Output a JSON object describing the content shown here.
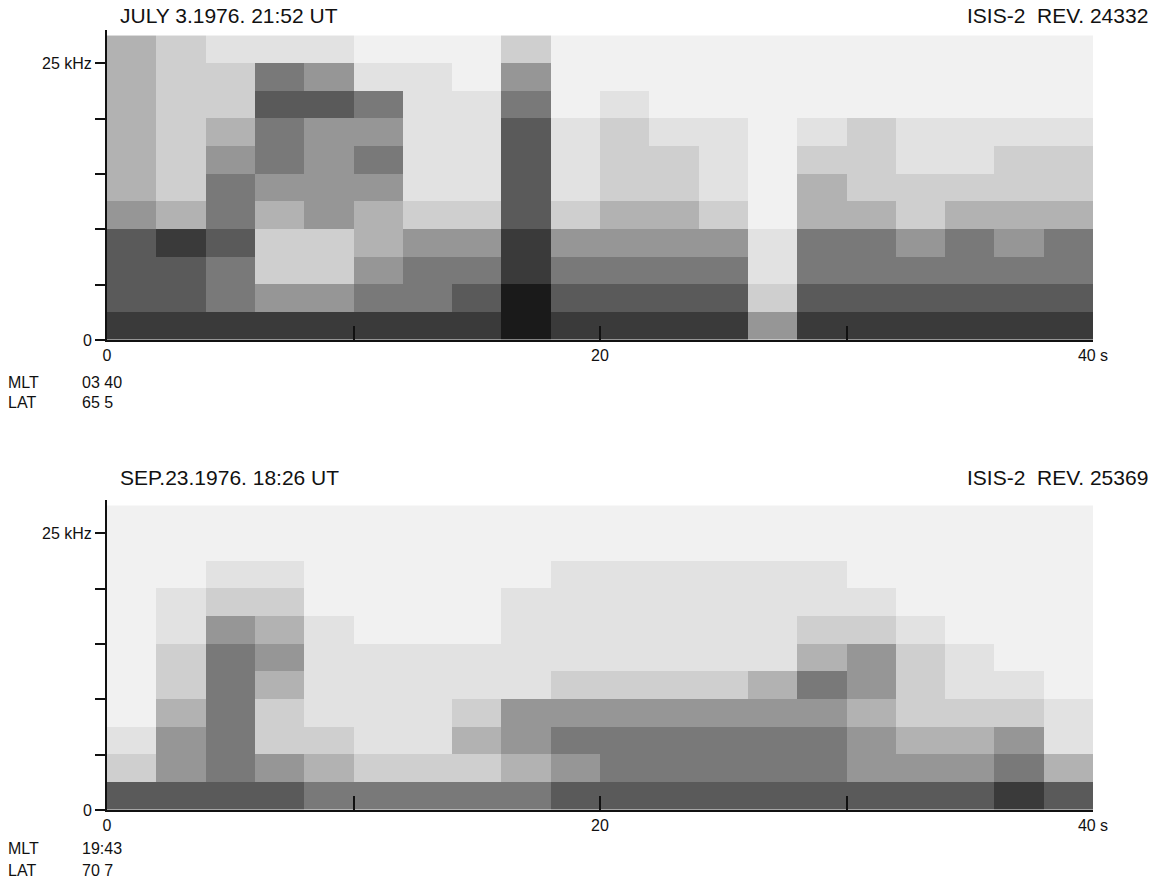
{
  "chart_data": [
    {
      "type": "heatmap",
      "title": "JULY 3.1976. 21:52 UT",
      "subtitle": "ISIS-2  REV. 24332",
      "annotations": [
        {
          "label": "MLT",
          "text": "03 40"
        },
        {
          "label": "LAT",
          "text": "65 5"
        }
      ],
      "x": [
        1,
        3,
        5,
        7,
        9,
        11,
        13,
        15,
        17,
        19,
        21,
        23,
        25,
        27,
        29,
        31,
        33,
        35,
        37,
        39
      ],
      "y": [
        1.25,
        3.75,
        6.25,
        8.75,
        11.25,
        13.75,
        16.25,
        18.75,
        21.25,
        23.75,
        26.25
      ],
      "z": [
        [
          8,
          8,
          8,
          8,
          8,
          8,
          8,
          8,
          9,
          8,
          8,
          8,
          8,
          5,
          8,
          8,
          8,
          8,
          8,
          8
        ],
        [
          7,
          7,
          6,
          5,
          5,
          6,
          6,
          7,
          9,
          7,
          7,
          7,
          7,
          3,
          7,
          7,
          7,
          7,
          7,
          7
        ],
        [
          7,
          7,
          6,
          3,
          3,
          5,
          6,
          6,
          8,
          6,
          6,
          6,
          6,
          2,
          6,
          6,
          6,
          6,
          6,
          6
        ],
        [
          7,
          8,
          7,
          3,
          3,
          4,
          5,
          5,
          8,
          5,
          5,
          5,
          5,
          2,
          6,
          6,
          5,
          6,
          5,
          6
        ],
        [
          5,
          4,
          6,
          4,
          5,
          4,
          3,
          3,
          7,
          3,
          4,
          4,
          3,
          1,
          4,
          4,
          3,
          4,
          4,
          4
        ],
        [
          4,
          3,
          6,
          5,
          5,
          5,
          2,
          2,
          7,
          2,
          3,
          3,
          2,
          1,
          4,
          3,
          3,
          3,
          3,
          3
        ],
        [
          4,
          3,
          5,
          6,
          5,
          6,
          2,
          2,
          7,
          2,
          3,
          3,
          2,
          1,
          3,
          3,
          2,
          2,
          3,
          3
        ],
        [
          4,
          3,
          4,
          6,
          5,
          5,
          2,
          2,
          7,
          2,
          3,
          2,
          2,
          1,
          2,
          3,
          2,
          2,
          2,
          2
        ],
        [
          4,
          3,
          3,
          7,
          7,
          6,
          2,
          2,
          6,
          1,
          2,
          1,
          1,
          1,
          1,
          1,
          1,
          1,
          1,
          1
        ],
        [
          4,
          3,
          3,
          6,
          5,
          2,
          2,
          1,
          5,
          1,
          1,
          1,
          1,
          1,
          1,
          1,
          1,
          1,
          1,
          1
        ],
        [
          4,
          3,
          2,
          2,
          2,
          1,
          1,
          1,
          3,
          1,
          1,
          1,
          1,
          1,
          1,
          1,
          1,
          1,
          1,
          1
        ]
      ],
      "zlim": [
        0,
        9
      ],
      "xlim": [
        0,
        40
      ],
      "xticks": [
        0,
        {
          "value": 10,
          "label": null
        },
        20,
        {
          "value": 30,
          "label": null
        },
        {
          "value": 40,
          "label": "40 s"
        }
      ],
      "ylim": [
        0,
        28
      ],
      "yticks": [
        0,
        {
          "value": 5,
          "label": null
        },
        {
          "value": 10,
          "label": null
        },
        {
          "value": 15,
          "label": null
        },
        {
          "value": 20,
          "label": null
        },
        {
          "value": 25,
          "label": "25 kHz"
        }
      ],
      "grid": false
    },
    {
      "type": "heatmap",
      "title": "SEP.23.1976. 18:26 UT",
      "subtitle": "ISIS-2  REV. 25369",
      "annotations": [
        {
          "label": "MLT",
          "text": "19:43"
        },
        {
          "label": "LAT",
          "text": "70 7"
        }
      ],
      "x": [
        1,
        3,
        5,
        7,
        9,
        11,
        13,
        15,
        17,
        19,
        21,
        23,
        25,
        27,
        29,
        31,
        33,
        35,
        37,
        39
      ],
      "y": [
        1.25,
        3.75,
        6.25,
        8.75,
        11.25,
        13.75,
        16.25,
        18.75,
        21.25,
        23.75,
        26.25
      ],
      "z": [
        [
          7,
          7,
          7,
          7,
          6,
          6,
          6,
          6,
          6,
          7,
          7,
          7,
          7,
          7,
          7,
          7,
          7,
          7,
          8,
          7
        ],
        [
          3,
          5,
          6,
          5,
          4,
          3,
          3,
          3,
          4,
          5,
          6,
          6,
          6,
          6,
          6,
          5,
          5,
          5,
          6,
          4
        ],
        [
          2,
          5,
          6,
          3,
          3,
          2,
          2,
          4,
          5,
          6,
          6,
          6,
          6,
          6,
          6,
          5,
          4,
          4,
          5,
          2
        ],
        [
          1,
          4,
          6,
          3,
          2,
          2,
          2,
          3,
          5,
          5,
          5,
          5,
          5,
          5,
          5,
          4,
          3,
          3,
          3,
          2
        ],
        [
          1,
          3,
          6,
          4,
          2,
          2,
          2,
          2,
          2,
          3,
          3,
          3,
          3,
          4,
          6,
          5,
          3,
          2,
          2,
          1
        ],
        [
          1,
          3,
          6,
          5,
          2,
          2,
          2,
          2,
          2,
          2,
          2,
          2,
          2,
          2,
          4,
          5,
          3,
          2,
          1,
          1
        ],
        [
          1,
          2,
          5,
          4,
          2,
          1,
          1,
          1,
          2,
          2,
          2,
          2,
          2,
          2,
          3,
          3,
          2,
          1,
          1,
          1
        ],
        [
          1,
          2,
          3,
          3,
          1,
          1,
          1,
          1,
          2,
          2,
          2,
          2,
          2,
          2,
          2,
          2,
          1,
          1,
          1,
          1
        ],
        [
          1,
          1,
          2,
          2,
          1,
          1,
          1,
          1,
          1,
          2,
          2,
          2,
          2,
          2,
          2,
          1,
          1,
          1,
          1,
          1
        ],
        [
          1,
          1,
          1,
          1,
          1,
          1,
          1,
          1,
          1,
          1,
          1,
          1,
          1,
          1,
          1,
          1,
          1,
          1,
          1,
          1
        ],
        [
          1,
          1,
          1,
          1,
          1,
          1,
          1,
          1,
          1,
          1,
          1,
          1,
          1,
          1,
          1,
          1,
          1,
          1,
          1,
          1
        ]
      ],
      "zlim": [
        0,
        9
      ],
      "xlim": [
        0,
        40
      ],
      "xticks": [
        0,
        {
          "value": 10,
          "label": null
        },
        20,
        {
          "value": 30,
          "label": null
        },
        {
          "value": 40,
          "label": "40 s"
        }
      ],
      "ylim": [
        0,
        28
      ],
      "yticks": [
        0,
        {
          "value": 5,
          "label": null
        },
        {
          "value": 10,
          "label": null
        },
        {
          "value": 15,
          "label": null
        },
        {
          "value": 20,
          "label": null
        },
        {
          "value": 25,
          "label": "25 kHz"
        }
      ],
      "grid": false
    }
  ]
}
